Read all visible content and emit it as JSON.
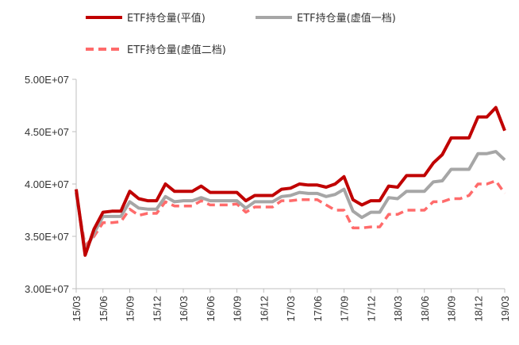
{
  "chart_data": {
    "type": "line",
    "title": "",
    "xlabel": "",
    "ylabel": "",
    "ylim": [
      30000000,
      50000000
    ],
    "y_ticks": [
      "3.00E+07",
      "3.50E+07",
      "4.00E+07",
      "4.50E+07",
      "5.00E+07"
    ],
    "y_tick_values": [
      30000000,
      35000000,
      40000000,
      45000000,
      50000000
    ],
    "x_ticks": [
      "15/03",
      "15/06",
      "15/09",
      "15/12",
      "16/03",
      "16/06",
      "16/09",
      "16/12",
      "17/03",
      "17/06",
      "17/09",
      "17/12",
      "18/03",
      "18/06",
      "18/09",
      "18/12",
      "19/03"
    ],
    "legend_position": "top",
    "grid": false,
    "x": [
      "15/03",
      "15/04",
      "15/05",
      "15/06",
      "15/07",
      "15/08",
      "15/09",
      "15/10",
      "15/11",
      "15/12",
      "16/01",
      "16/02",
      "16/03",
      "16/04",
      "16/05",
      "16/06",
      "16/07",
      "16/08",
      "16/09",
      "16/10",
      "16/11",
      "16/12",
      "17/01",
      "17/02",
      "17/03",
      "17/04",
      "17/05",
      "17/06",
      "17/07",
      "17/08",
      "17/09",
      "17/10",
      "17/11",
      "17/12",
      "18/01",
      "18/02",
      "18/03",
      "18/04",
      "18/05",
      "18/06",
      "18/07",
      "18/08",
      "18/09",
      "18/10",
      "18/11",
      "18/12",
      "19/01",
      "19/02",
      "19/03"
    ],
    "series": [
      {
        "name": "ETF持仓量(平值)",
        "color": "#C00000",
        "style": "solid",
        "values": [
          39500000,
          33200000,
          35700000,
          37300000,
          37400000,
          37400000,
          39300000,
          38600000,
          38400000,
          38400000,
          40000000,
          39300000,
          39300000,
          39300000,
          39800000,
          39200000,
          39200000,
          39200000,
          39200000,
          38400000,
          38900000,
          38900000,
          38900000,
          39500000,
          39600000,
          40000000,
          39900000,
          39900000,
          39700000,
          40000000,
          40700000,
          38500000,
          38000000,
          38400000,
          38400000,
          39800000,
          39700000,
          40800000,
          40800000,
          40800000,
          42000000,
          42800000,
          44400000,
          44400000,
          44400000,
          46400000,
          46400000,
          47300000,
          45100000
        ]
      },
      {
        "name": "ETF持仓量(虚值一档)",
        "color": "#A6A6A6",
        "style": "solid",
        "values": [
          39200000,
          33600000,
          35300000,
          36900000,
          36900000,
          36900000,
          38300000,
          37700000,
          37600000,
          37600000,
          38800000,
          38300000,
          38400000,
          38400000,
          38700000,
          38400000,
          38400000,
          38400000,
          38400000,
          37700000,
          38300000,
          38300000,
          38300000,
          38800000,
          38900000,
          39200000,
          39100000,
          39100000,
          38800000,
          39000000,
          39500000,
          37400000,
          36800000,
          37300000,
          37300000,
          38700000,
          38600000,
          39300000,
          39300000,
          39300000,
          40200000,
          40300000,
          41400000,
          41400000,
          41400000,
          42900000,
          42900000,
          43100000,
          42300000
        ]
      },
      {
        "name": "ETF持仓量(虚值二档)",
        "color": "#FF6B6B",
        "style": "dashed",
        "values": [
          39000000,
          34100000,
          35000000,
          36300000,
          36300000,
          36400000,
          37600000,
          37000000,
          37200000,
          37200000,
          38300000,
          37900000,
          37900000,
          37900000,
          38400000,
          38000000,
          38000000,
          38000000,
          38100000,
          37300000,
          37800000,
          37800000,
          37800000,
          38400000,
          38400000,
          38500000,
          38500000,
          38500000,
          38000000,
          37500000,
          37500000,
          35800000,
          35800000,
          35900000,
          35900000,
          37100000,
          37100000,
          37500000,
          37500000,
          37500000,
          38300000,
          38300000,
          38600000,
          38600000,
          38900000,
          40000000,
          40000000,
          40300000,
          39100000
        ]
      }
    ]
  }
}
